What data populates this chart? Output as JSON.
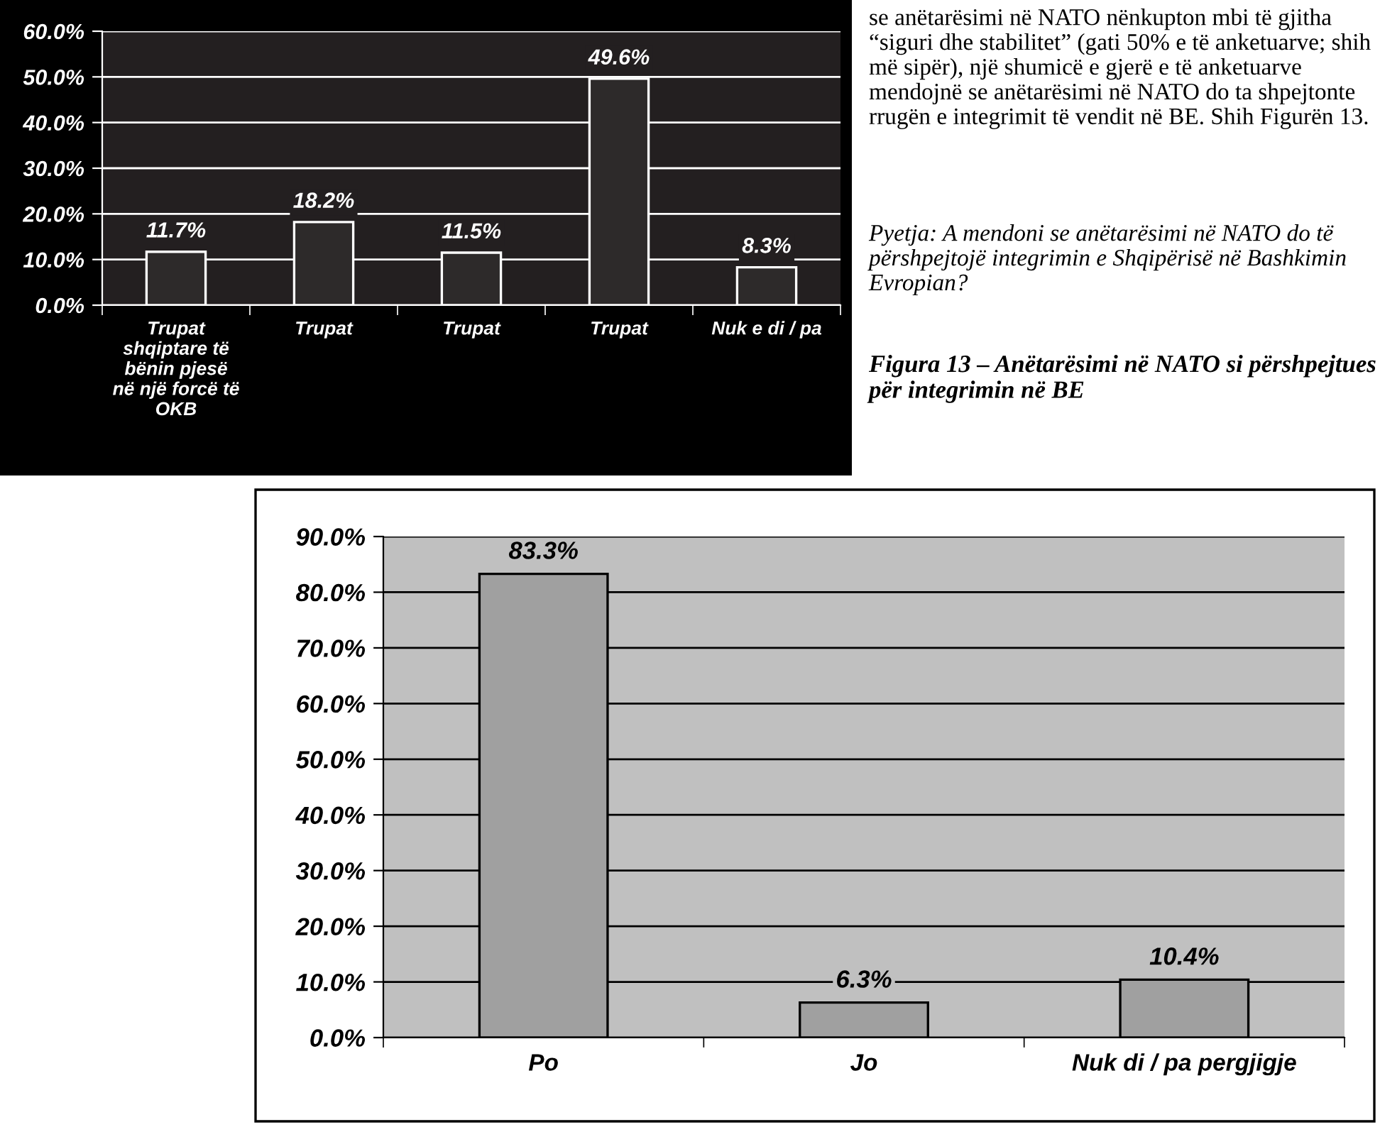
{
  "chart_data": [
    {
      "type": "bar",
      "categories": [
        "Trupat\nshqiptare të\nbënin pjesë\nnë një forcë të\nOKB",
        "Trupat",
        "Trupat",
        "Trupat",
        "Nuk e di / pa"
      ],
      "values": [
        11.7,
        18.2,
        11.5,
        49.6,
        8.3
      ],
      "color": "#2d2a2a",
      "value_labels": [
        "11.7%",
        "18.2%",
        "11.5%",
        "49.6%",
        "8.3%"
      ],
      "ylim": [
        0,
        60
      ],
      "yticks": [
        {
          "value": 0,
          "label": "0.0%"
        },
        {
          "value": 10,
          "label": "10.0%"
        },
        {
          "value": 20,
          "label": "20.0%"
        },
        {
          "value": 30,
          "label": "30.0%"
        },
        {
          "value": 40,
          "label": "40.0%"
        },
        {
          "value": 50,
          "label": "50.0%"
        },
        {
          "value": 60,
          "label": "60.0%"
        }
      ],
      "grid": "y"
    },
    {
      "type": "bar",
      "title": "Figura 13 – Anëtarësimi në NATO si përshpejtues për integrimin në BE",
      "annotations": [
        "se anëtarësimi në NATO nënkupton mbi të gjitha “siguri dhe stabilitet” (gati 50% e të anketuarve; shih më sipër), një shumicë e gjerë e të anketuarve mendojnë se anëtarësimi në NATO do ta shpejtonte rrugën e integrimit të vendit në BE. Shih Figurën 13.",
        "Pyetja: A mendoni se anëtarësimi në NATO do të përshpejtojë integrimin e Shqipërisë në Bashkimin Evropian?"
      ],
      "categories": [
        "Po",
        "Jo",
        "Nuk di / pa pergjigje"
      ],
      "values": [
        83.3,
        6.3,
        10.4
      ],
      "color": "#a0a0a0",
      "value_labels": [
        "83.3%",
        "6.3%",
        "10.4%"
      ],
      "ylim": [
        0,
        90
      ],
      "yticks": [
        {
          "value": 0,
          "label": "0.0%"
        },
        {
          "value": 10,
          "label": "10.0%"
        },
        {
          "value": 20,
          "label": "20.0%"
        },
        {
          "value": 30,
          "label": "30.0%"
        },
        {
          "value": 40,
          "label": "40.0%"
        },
        {
          "value": 50,
          "label": "50.0%"
        },
        {
          "value": 60,
          "label": "60.0%"
        },
        {
          "value": 70,
          "label": "70.0%"
        },
        {
          "value": 80,
          "label": "80.0%"
        },
        {
          "value": 90,
          "label": "90.0%"
        }
      ],
      "grid": "y"
    }
  ]
}
